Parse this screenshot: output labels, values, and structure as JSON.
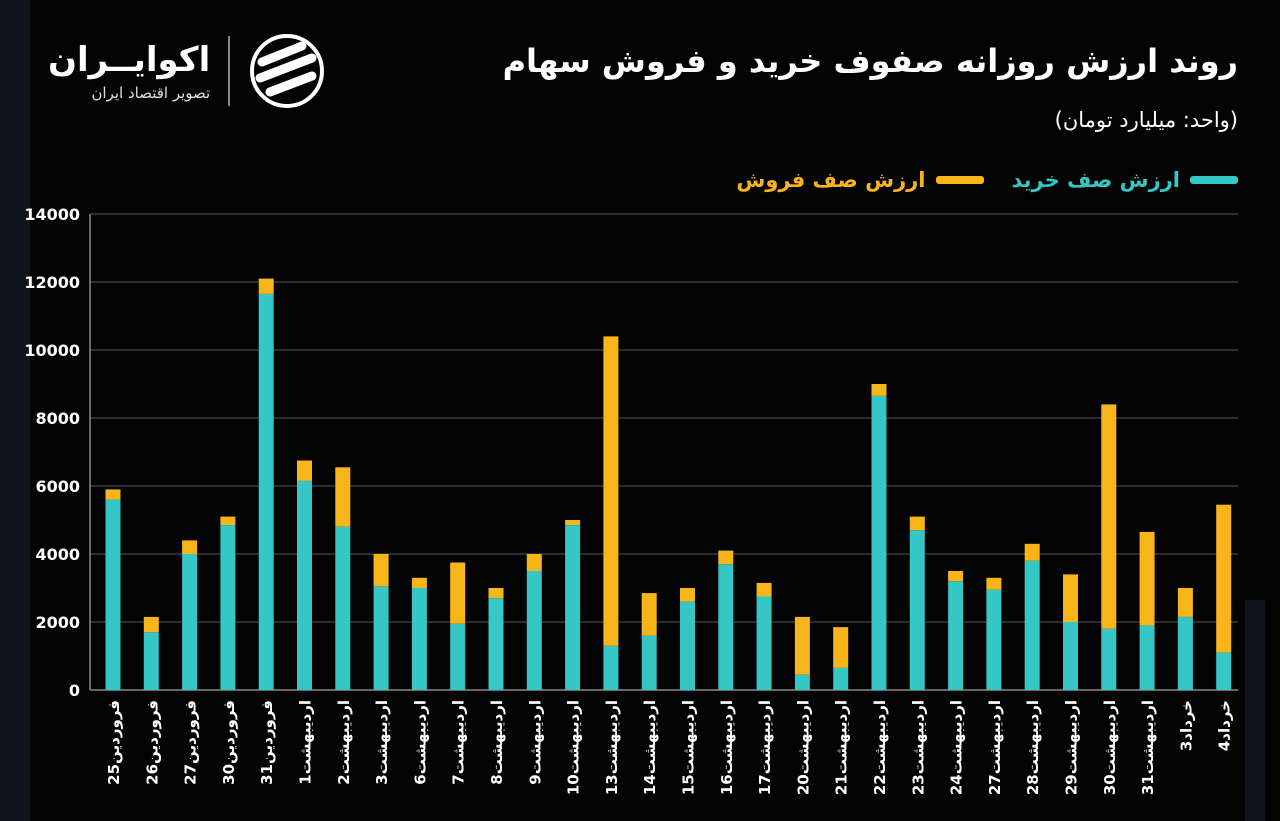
{
  "header": {
    "title": "روند ارزش روزانه صفوف خرید و فروش سهام",
    "unit": "(واحد: میلیارد تومان)"
  },
  "logo": {
    "name": "اکوایــران",
    "tagline": "تصویر اقتصاد ایران",
    "icon": "ekoiran-logo-icon"
  },
  "colors": {
    "buy": "#35c6c6",
    "sell": "#f7b519",
    "grid": "#555555",
    "background": "#030303"
  },
  "chart_data": {
    "type": "bar",
    "stacked": true,
    "title": "روند ارزش روزانه صفوف خرید و فروش سهام",
    "ylabel": "",
    "ylim": [
      0,
      14000
    ],
    "yticks": [
      "0",
      "2000",
      "4000",
      "6000",
      "8000",
      "10000",
      "12000",
      "14000"
    ],
    "grid": true,
    "legend_position": "top-right",
    "categories": [
      "25فروردین",
      "26فروردین",
      "27فروردین",
      "30فروردین",
      "31فروردین",
      "1اردیبهشت",
      "2اردیبهشت",
      "3اردیبهشت",
      "6اردیبهشت",
      "7اردیبهشت",
      "8اردیبهشت",
      "9اردیبهشت",
      "10اردیبهشت",
      "13اردیبهشت",
      "14اردیبهشت",
      "15اردیبهشت",
      "16اردیبهشت",
      "17اردیبهشت",
      "20اردیبهشت",
      "21اردیبهشت",
      "22اردیبهشت",
      "23اردیبهشت",
      "24اردیبهشت",
      "27اردیبهشت",
      "28اردیبهشت",
      "29اردیبهشت",
      "30اردیبهشت",
      "31اردیبهشت",
      "3خرداد",
      "4خرداد"
    ],
    "series": [
      {
        "name": "ارزش صف خرید",
        "values": [
          5600,
          1700,
          4000,
          4850,
          11650,
          6150,
          4800,
          3050,
          3000,
          1950,
          2700,
          3500,
          4850,
          1300,
          1600,
          2600,
          3700,
          2750,
          450,
          650,
          8650,
          4700,
          3200,
          2950,
          3800,
          2000,
          1800,
          1900,
          2150,
          1100
        ]
      },
      {
        "name": "ارزش صف فروش",
        "values": [
          300,
          450,
          400,
          250,
          450,
          600,
          1750,
          950,
          300,
          1800,
          300,
          500,
          150,
          9100,
          1250,
          400,
          400,
          400,
          1700,
          1200,
          350,
          400,
          300,
          350,
          500,
          1400,
          6600,
          2750,
          850,
          4350
        ]
      }
    ]
  }
}
